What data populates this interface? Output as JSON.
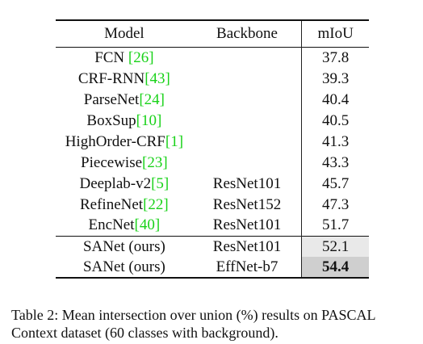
{
  "table": {
    "headers": {
      "model": "Model",
      "backbone": "Backbone",
      "miou": "mIoU"
    },
    "rows": [
      {
        "model": "FCN ",
        "ref": "[26]",
        "backbone": "",
        "miou": "37.8"
      },
      {
        "model": "CRF-RNN",
        "ref": "[43]",
        "backbone": "",
        "miou": "39.3"
      },
      {
        "model": "ParseNet",
        "ref": "[24]",
        "backbone": "",
        "miou": "40.4"
      },
      {
        "model": "BoxSup",
        "ref": "[10]",
        "backbone": "",
        "miou": "40.5"
      },
      {
        "model": "HighOrder-CRF",
        "ref": "[1]",
        "backbone": "",
        "miou": "41.3"
      },
      {
        "model": "Piecewise",
        "ref": "[23]",
        "backbone": "",
        "miou": "43.3"
      },
      {
        "model": "Deeplab-v2",
        "ref": "[5]",
        "backbone": "ResNet101",
        "miou": "45.7"
      },
      {
        "model": "RefineNet",
        "ref": "[22]",
        "backbone": "ResNet152",
        "miou": "47.3"
      },
      {
        "model": "EncNet",
        "ref": "[40]",
        "backbone": "ResNet101",
        "miou": "51.7"
      },
      {
        "model": "SANet (ours)",
        "ref": "",
        "backbone": "ResNet101",
        "miou": "52.1"
      },
      {
        "model": "SANet (ours)",
        "ref": "",
        "backbone": "EffNet-b7",
        "miou": "54.4"
      }
    ]
  },
  "caption": "Table 2: Mean intersection over union (%) results on PASCAL Context dataset (60 classes with background).",
  "colors": {
    "reference_link": "#19d219",
    "highlight_light": "#e9e9e9",
    "highlight_dark": "#cfcfcf"
  }
}
